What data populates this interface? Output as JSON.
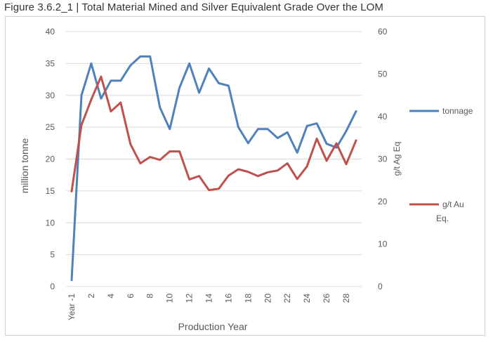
{
  "caption": "Figure 3.6.2_1 | Total Material Mined and Silver Equivalent Grade Over the LOM",
  "chart_data": {
    "type": "line",
    "title": "Figure 3.6.2_1 | Total Material Mined and Silver Equivalent Grade Over the LOM",
    "xlabel": "Production Year",
    "ylabel": "million tonne",
    "y2label": "g/t Ag Eq",
    "categories": [
      "Year -1",
      "1",
      "2",
      "3",
      "4",
      "5",
      "6",
      "7",
      "8",
      "9",
      "10",
      "11",
      "12",
      "13",
      "14",
      "15",
      "16",
      "17",
      "18",
      "19",
      "20",
      "21",
      "22",
      "23",
      "24",
      "25",
      "26",
      "27",
      "28",
      "29"
    ],
    "x_tick_labels": [
      "Year -1",
      "2",
      "4",
      "6",
      "8",
      "10",
      "12",
      "14",
      "16",
      "18",
      "20",
      "22",
      "24",
      "26",
      "28"
    ],
    "ylim": [
      0,
      40
    ],
    "y_ticks": [
      0,
      5,
      10,
      15,
      20,
      25,
      30,
      35,
      40
    ],
    "y2lim": [
      0,
      60
    ],
    "y2_ticks": [
      0,
      10,
      20,
      30,
      40,
      50,
      60
    ],
    "grid": true,
    "legend_position": "right",
    "series": [
      {
        "name": "tonnage",
        "axis": "left",
        "color": "#4F81BD",
        "values": [
          1.0,
          30.0,
          35.0,
          29.5,
          32.3,
          32.3,
          34.7,
          36.1,
          36.1,
          28.1,
          24.7,
          31.2,
          35.0,
          30.4,
          34.2,
          31.9,
          31.5,
          25.0,
          22.5,
          24.7,
          24.7,
          23.3,
          24.2,
          21.0,
          25.2,
          25.6,
          22.4,
          21.8,
          24.4,
          27.5
        ]
      },
      {
        "name": "g/t Au Eq.",
        "axis": "right",
        "color": "#C0504D",
        "values": [
          22.4,
          38.0,
          44.0,
          49.4,
          41.2,
          43.3,
          33.5,
          29.0,
          30.5,
          29.8,
          31.8,
          31.8,
          25.2,
          26.0,
          22.7,
          23.0,
          26.1,
          27.6,
          27.0,
          26.0,
          26.9,
          27.3,
          29.0,
          25.3,
          28.3,
          34.8,
          29.6,
          33.7,
          28.8,
          34.4
        ]
      }
    ]
  }
}
